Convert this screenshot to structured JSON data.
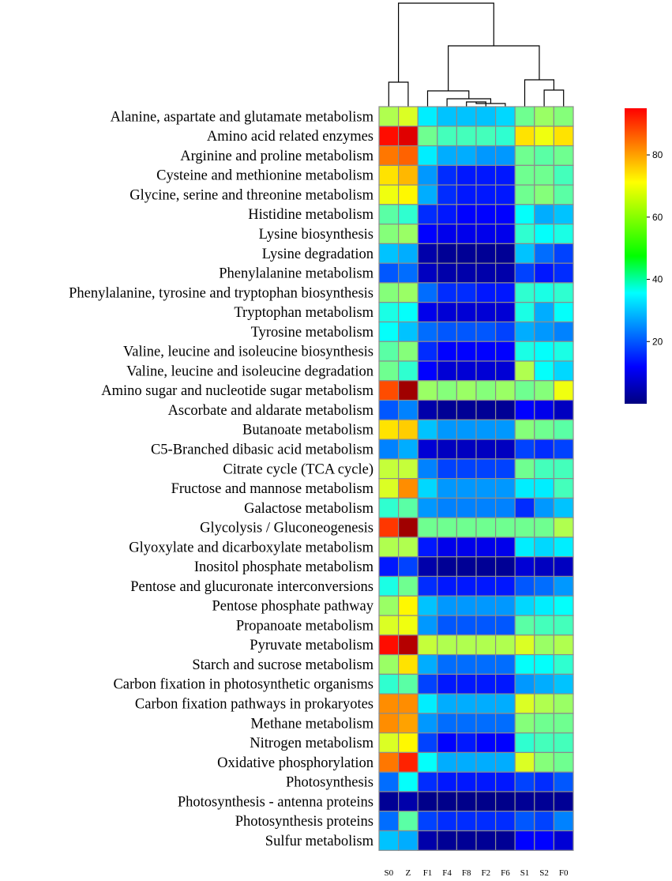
{
  "chart_data": {
    "type": "heatmap",
    "title": "",
    "columns": [
      "S0",
      "Z",
      "F1",
      "F4",
      "F8",
      "F2",
      "F6",
      "S1",
      "S2",
      "F0"
    ],
    "rows": [
      "Alanine, aspartate and glutamate metabolism",
      "Amino acid related enzymes",
      "Arginine and proline metabolism",
      "Cysteine and methionine metabolism",
      "Glycine, serine and threonine metabolism",
      "Histidine metabolism",
      "Lysine biosynthesis",
      "Lysine degradation",
      "Phenylalanine metabolism",
      "Phenylalanine, tyrosine and tryptophan biosynthesis",
      "Tryptophan metabolism",
      "Tyrosine metabolism",
      "Valine, leucine and isoleucine biosynthesis",
      "Valine, leucine and isoleucine degradation",
      "Amino sugar and nucleotide sugar metabolism",
      "Ascorbate and aldarate metabolism",
      "Butanoate metabolism",
      "C5-Branched dibasic acid metabolism",
      "Citrate cycle (TCA cycle)",
      "Fructose and mannose metabolism",
      "Galactose metabolism",
      "Glycolysis / Gluconeogenesis",
      "Glyoxylate and dicarboxylate metabolism",
      "Inositol phosphate metabolism",
      "Pentose and glucuronate interconversions",
      "Pentose phosphate pathway",
      "Propanoate metabolism",
      "Pyruvate metabolism",
      "Starch and sucrose metabolism",
      "Carbon fixation in photosynthetic organisms",
      "Carbon fixation pathways in prokaryotes",
      "Methane metabolism",
      "Nitrogen metabolism",
      "Oxidative phosphorylation",
      "Photosynthesis",
      "Photosynthesis - antenna proteins",
      "Photosynthesis proteins",
      "Sulfur metabolism"
    ],
    "values": [
      [
        52,
        56,
        34,
        30,
        30,
        30,
        32,
        46,
        50,
        48
      ],
      [
        82,
        86,
        46,
        42,
        42,
        42,
        40,
        62,
        58,
        62
      ],
      [
        72,
        74,
        34,
        28,
        28,
        26,
        26,
        46,
        44,
        46
      ],
      [
        62,
        66,
        26,
        16,
        14,
        14,
        14,
        46,
        46,
        42
      ],
      [
        58,
        60,
        28,
        16,
        14,
        14,
        14,
        46,
        48,
        44
      ],
      [
        44,
        40,
        16,
        14,
        12,
        12,
        12,
        36,
        28,
        30
      ],
      [
        48,
        50,
        12,
        10,
        10,
        10,
        10,
        40,
        36,
        38
      ],
      [
        30,
        28,
        4,
        2,
        2,
        2,
        2,
        30,
        22,
        18
      ],
      [
        20,
        22,
        6,
        4,
        4,
        4,
        4,
        18,
        14,
        16
      ],
      [
        48,
        50,
        22,
        16,
        16,
        14,
        14,
        40,
        38,
        40
      ],
      [
        38,
        36,
        10,
        8,
        8,
        8,
        8,
        38,
        28,
        36
      ],
      [
        36,
        30,
        22,
        20,
        20,
        20,
        18,
        28,
        26,
        24
      ],
      [
        44,
        48,
        16,
        12,
        12,
        12,
        12,
        38,
        36,
        38
      ],
      [
        46,
        40,
        12,
        8,
        8,
        8,
        8,
        52,
        36,
        32
      ],
      [
        76,
        92,
        50,
        48,
        50,
        48,
        50,
        46,
        48,
        58
      ],
      [
        20,
        24,
        4,
        2,
        2,
        2,
        2,
        12,
        10,
        6
      ],
      [
        62,
        64,
        30,
        26,
        26,
        26,
        26,
        48,
        46,
        44
      ],
      [
        24,
        28,
        8,
        6,
        6,
        6,
        6,
        18,
        16,
        18
      ],
      [
        54,
        54,
        24,
        18,
        18,
        18,
        18,
        46,
        42,
        42
      ],
      [
        56,
        70,
        32,
        26,
        26,
        26,
        26,
        34,
        34,
        42
      ],
      [
        40,
        44,
        26,
        24,
        24,
        24,
        24,
        16,
        26,
        30
      ],
      [
        78,
        92,
        46,
        46,
        46,
        46,
        46,
        46,
        46,
        52
      ],
      [
        52,
        52,
        14,
        10,
        10,
        10,
        10,
        34,
        32,
        34
      ],
      [
        14,
        18,
        4,
        2,
        2,
        2,
        2,
        8,
        6,
        6
      ],
      [
        38,
        46,
        16,
        14,
        14,
        14,
        14,
        20,
        22,
        26
      ],
      [
        50,
        60,
        30,
        26,
        26,
        26,
        26,
        32,
        34,
        36
      ],
      [
        56,
        58,
        26,
        20,
        20,
        20,
        20,
        44,
        42,
        42
      ],
      [
        82,
        90,
        54,
        52,
        52,
        52,
        52,
        56,
        50,
        52
      ],
      [
        50,
        62,
        28,
        22,
        22,
        22,
        22,
        36,
        36,
        40
      ],
      [
        40,
        44,
        18,
        14,
        14,
        14,
        14,
        26,
        28,
        30
      ],
      [
        70,
        70,
        34,
        28,
        28,
        28,
        28,
        56,
        52,
        50
      ],
      [
        70,
        68,
        26,
        22,
        22,
        22,
        22,
        48,
        46,
        46
      ],
      [
        56,
        60,
        18,
        12,
        14,
        12,
        12,
        40,
        42,
        42
      ],
      [
        72,
        80,
        36,
        28,
        28,
        28,
        28,
        56,
        48,
        46
      ],
      [
        22,
        36,
        16,
        14,
        14,
        14,
        14,
        18,
        16,
        20
      ],
      [
        2,
        4,
        1,
        1,
        1,
        1,
        1,
        2,
        2,
        2
      ],
      [
        22,
        44,
        18,
        16,
        16,
        16,
        16,
        20,
        18,
        24
      ],
      [
        30,
        28,
        4,
        2,
        2,
        2,
        2,
        12,
        12,
        8
      ]
    ],
    "colorbar": {
      "min": 0,
      "max": 95,
      "ticks": [
        20,
        40,
        60,
        80
      ]
    },
    "dendrogram": "hierarchical clustering of columns: ((S0,Z),((F1,(F4,((F8,F2),F6))),(S1,(S2,F0))))"
  }
}
